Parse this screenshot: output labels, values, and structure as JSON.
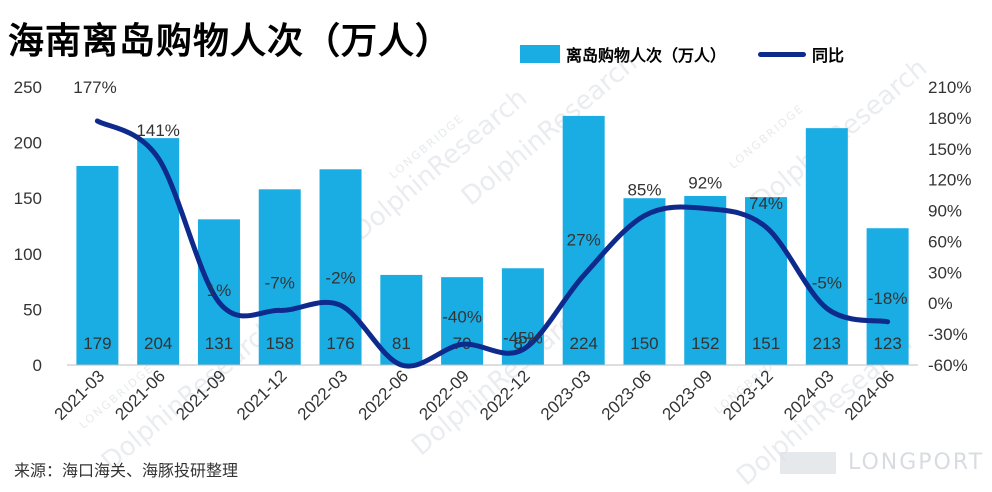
{
  "title": "海南离岛购物人次（万人）",
  "source": "来源：海口海关、海豚投研整理",
  "watermarks": [
    "DolphinResearch",
    "LONGBRIDGE"
  ],
  "brand": "LONGPORT",
  "colors": {
    "bar": "#1AADE4",
    "line": "#0E2A8C"
  },
  "chart_data": {
    "type": "bar",
    "categories": [
      "2021-03",
      "2021-06",
      "2021-09",
      "2021-12",
      "2022-03",
      "2022-06",
      "2022-09",
      "2022-12",
      "2023-03",
      "2023-06",
      "2023-09",
      "2023-12",
      "2024-03",
      "2024-06"
    ],
    "series": [
      {
        "name": "离岛购物人次（万人）",
        "type": "bar",
        "axis": "left",
        "values": [
          179,
          204,
          131,
          158,
          176,
          81,
          79,
          87,
          224,
          150,
          152,
          151,
          213,
          123
        ]
      },
      {
        "name": "同比",
        "type": "line",
        "axis": "right",
        "values": [
          177,
          141,
          1,
          -7,
          -2,
          -60,
          -40,
          -45,
          27,
          85,
          92,
          74,
          -5,
          -18
        ]
      }
    ],
    "bar_labels": [
      "179",
      "204",
      "131",
      "158",
      "176",
      "81",
      "79",
      "87",
      "224",
      "150",
      "152",
      "151",
      "213",
      "123"
    ],
    "line_labels": [
      "177%",
      "141%",
      "1%",
      "-7%",
      "-2%",
      "",
      "-40%",
      "-45%",
      "27%",
      "85%",
      "92%",
      "74%",
      "-5%",
      "-18%"
    ],
    "y_left": {
      "range": [
        0,
        250
      ],
      "ticks": [
        "0",
        "50",
        "100",
        "150",
        "200",
        "250"
      ]
    },
    "y_right": {
      "range": [
        -60,
        210
      ],
      "ticks": [
        "-60%",
        "-30%",
        "0%",
        "30%",
        "60%",
        "90%",
        "120%",
        "150%",
        "180%",
        "210%"
      ]
    },
    "legend": [
      "离岛购物人次（万人）",
      "同比"
    ],
    "legend_position": "top-right",
    "grid": false
  }
}
